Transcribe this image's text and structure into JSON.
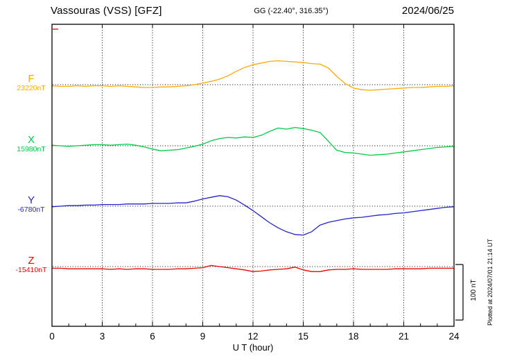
{
  "header": {
    "station_title": "Vassouras (VSS)  [GFZ]",
    "gg_coords": "GG (-22.40°, 316.35°)",
    "date": "2024/06/25"
  },
  "axes": {
    "x_label": "U T (hour)",
    "x_ticks": [
      0,
      3,
      6,
      9,
      12,
      15,
      18,
      21,
      24
    ],
    "x_range_hours": [
      0,
      24
    ],
    "grid": "dotted vertical lines every 3 hours, dotted baseline per trace"
  },
  "scale_bar": {
    "label": "100 nT",
    "nT": 100
  },
  "footer": {
    "plotted_at": "Plotted at 2024/07/01 21:14 UT"
  },
  "chart_data": {
    "type": "line",
    "title": "Vassouras (VSS) [GFZ] magnetogram 2024/06/25",
    "x_start_hour": 0,
    "x_step_hours": 0.5,
    "values_unit": "nT relative to each component baseline",
    "legend_position": "left",
    "series": [
      {
        "label": "F",
        "baseline_label": "23220nT",
        "baseline_nT": 23220,
        "color": "#FFAA00",
        "values": [
          -2,
          -3,
          -3,
          -2,
          -3,
          -2,
          -2,
          -3,
          -2,
          -3,
          -4,
          -5,
          -5,
          -4,
          -4,
          -3,
          -2,
          0,
          3,
          6,
          10,
          16,
          24,
          31,
          36,
          39,
          42,
          43,
          42,
          41,
          40,
          38,
          37,
          30,
          15,
          2,
          -6,
          -9,
          -10,
          -9,
          -8,
          -7,
          -6,
          -5,
          -5,
          -4,
          -3,
          -3,
          -2
        ]
      },
      {
        "label": "X",
        "baseline_label": "15980nT",
        "baseline_nT": 15980,
        "color": "#00CC44",
        "values": [
          1,
          0,
          -1,
          0,
          1,
          2,
          2,
          1,
          2,
          3,
          1,
          -2,
          -6,
          -9,
          -8,
          -7,
          -4,
          -1,
          3,
          9,
          13,
          15,
          14,
          16,
          15,
          19,
          26,
          32,
          30,
          33,
          31,
          28,
          24,
          8,
          -8,
          -12,
          -13,
          -15,
          -17,
          -16,
          -15,
          -13,
          -11,
          -9,
          -7,
          -5,
          -3,
          -2,
          -1
        ]
      },
      {
        "label": "Y",
        "baseline_label": "-6780nT",
        "baseline_nT": -6780,
        "color": "#2222CC",
        "values": [
          -1,
          0,
          1,
          1,
          2,
          2,
          3,
          3,
          3,
          4,
          4,
          4,
          5,
          5,
          5,
          6,
          6,
          9,
          13,
          16,
          19,
          17,
          11,
          2,
          -8,
          -19,
          -30,
          -39,
          -46,
          -51,
          -52,
          -46,
          -34,
          -29,
          -26,
          -23,
          -21,
          -20,
          -18,
          -16,
          -15,
          -13,
          -12,
          -10,
          -8,
          -6,
          -4,
          -2,
          -1
        ]
      },
      {
        "label": "Z",
        "baseline_label": "-15410nT",
        "baseline_nT": -15410,
        "color": "#EE0000",
        "values": [
          -3,
          -3,
          -4,
          -4,
          -4,
          -4,
          -4,
          -5,
          -4,
          -5,
          -4,
          -4,
          -5,
          -5,
          -5,
          -4,
          -4,
          -3,
          -2,
          2,
          0,
          -2,
          -4,
          -6,
          -9,
          -8,
          -6,
          -5,
          -4,
          -1,
          -6,
          -9,
          -9,
          -6,
          -5,
          -5,
          -4,
          -5,
          -5,
          -5,
          -5,
          -4,
          -4,
          -4,
          -4,
          -3,
          -3,
          -3,
          -3
        ]
      }
    ]
  }
}
